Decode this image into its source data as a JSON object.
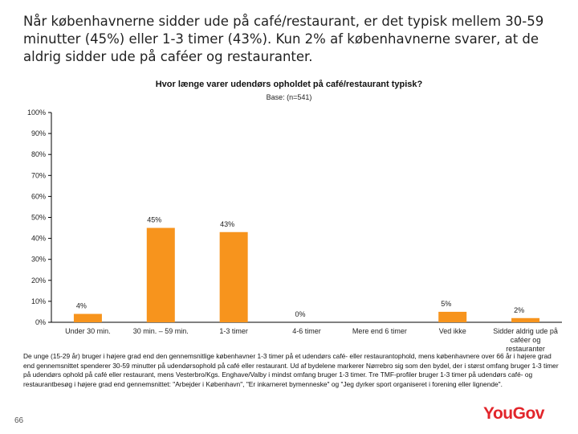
{
  "headline": "Når københavnerne sidder ude på café/restaurant, er det typisk mellem 30-59 minutter (45%) eller 1-3 timer (43%). Kun 2% af københavnerne svarer, at de aldrig sidder ude på caféer og restauranter.",
  "footnote": "De unge (15-29 år) bruger i højere grad end den gennemsnitlige københavner 1-3 timer på et udendørs café- eller restaurantophold, mens københavnere over 66 år i højere grad end gennemsnittet spenderer 30-59 minutter på udendørsophold på café eller restaurant. Ud af bydelene markerer Nørrebro sig som den bydel, der i størst omfang bruger 1-3 timer på udendørs ophold på café eller restaurant, mens Vesterbro/Kgs. Enghave/Valby i mindst omfang bruger 1-3 timer. Tre TMF-profiler bruger 1-3 timer på udendørs café- og restaurantbesøg i højere grad end gennemsnittet: \"Arbejder i København\", \"Er inkarneret bymenneske\" og \"Jeg dyrker sport organiseret i forening eller lignende\".",
  "page_number": "66",
  "logo_text": "YouGov",
  "colors": {
    "bar": "#f7941d",
    "axis": "#000000",
    "brand": "#e2252b"
  },
  "chart_data": {
    "type": "bar",
    "title": "Hvor længe varer udendørs opholdet på café/restaurant typisk?",
    "subtitle": "Base: (n=541)",
    "categories": [
      "Under 30 min.",
      "30 min. – 59 min.",
      "1-3 timer",
      "4-6 timer",
      "Mere end 6 timer",
      "Ved ikke",
      "Sidder aldrig ude på caféer og restauranter"
    ],
    "values": [
      4,
      45,
      43,
      0,
      0,
      5,
      2
    ],
    "data_labels": [
      "4%",
      "45%",
      "43%",
      "0%",
      "",
      "5%",
      "2%"
    ],
    "y_ticks": [
      "0%",
      "10%",
      "20%",
      "30%",
      "40%",
      "50%",
      "60%",
      "70%",
      "80%",
      "90%",
      "100%"
    ],
    "ylim": [
      0,
      100
    ],
    "grid": false,
    "legend": "none"
  }
}
